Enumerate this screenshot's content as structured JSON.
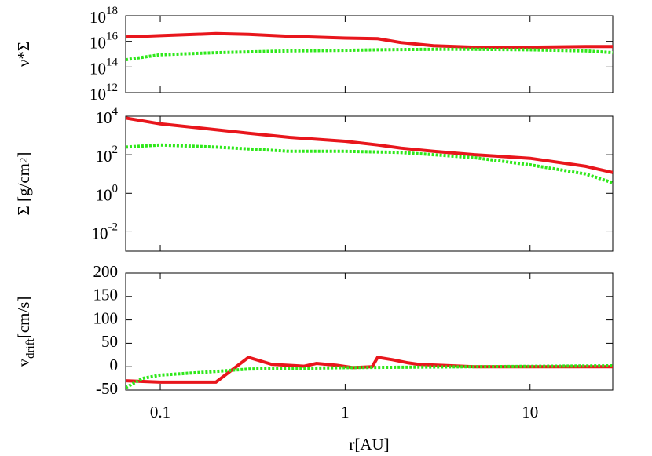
{
  "chart_data": [
    {
      "type": "line",
      "xlog": true,
      "ylog": true,
      "xlim": [
        0.065,
        28
      ],
      "xticks": [
        0.1,
        1,
        10
      ],
      "xtick_labels": false,
      "ylim": [
        1000000000000.0,
        1e+18
      ],
      "yticks": [
        {
          "value": 1000000000000.0,
          "label": "10",
          "sup": "12"
        },
        {
          "value": 100000000000000.0,
          "label": "10",
          "sup": "14"
        },
        {
          "value": 1e+16,
          "label": "10",
          "sup": "16"
        },
        {
          "value": 1e+18,
          "label": "10",
          "sup": "18"
        }
      ],
      "ylabel": [
        {
          "text": "ν*Σ"
        }
      ],
      "series": [
        {
          "color": "#e8161c",
          "style": "solid",
          "x": [
            0.065,
            0.1,
            0.2,
            0.3,
            0.5,
            1,
            1.5,
            2,
            3,
            5,
            10,
            20,
            28
          ],
          "values": [
            2.2e+16,
            2.8e+16,
            4e+16,
            3.5e+16,
            2.5e+16,
            1.8e+16,
            1.6e+16,
            8000000000000000.0,
            4500000000000000.0,
            3500000000000000.0,
            3500000000000000.0,
            4000000000000000.0,
            4000000000000000.0
          ]
        },
        {
          "color": "#2ee81a",
          "style": "dotted",
          "x": [
            0.065,
            0.1,
            0.2,
            0.3,
            0.5,
            1,
            1.5,
            2,
            3,
            5,
            10,
            20,
            28
          ],
          "values": [
            370000000000000.0,
            900000000000000.0,
            1300000000000000.0,
            1500000000000000.0,
            1800000000000000.0,
            2000000000000000.0,
            2200000000000000.0,
            2300000000000000.0,
            2400000000000000.0,
            2400000000000000.0,
            2200000000000000.0,
            1800000000000000.0,
            1300000000000000.0
          ]
        }
      ]
    },
    {
      "type": "line",
      "xlog": true,
      "ylog": true,
      "xlim": [
        0.065,
        28
      ],
      "xticks": [
        0.1,
        1,
        10
      ],
      "xtick_labels": false,
      "ylim": [
        0.001,
        10000
      ],
      "yticks": [
        {
          "value": 0.01,
          "label": "10",
          "sup": "-2"
        },
        {
          "value": 1,
          "label": "10",
          "sup": "0"
        },
        {
          "value": 100,
          "label": "10",
          "sup": "2"
        },
        {
          "value": 10000,
          "label": "10",
          "sup": "4"
        }
      ],
      "ylabel": [
        {
          "text": "Σ [g/cm"
        },
        {
          "text": "2",
          "shift": "sup"
        },
        {
          "text": "]"
        }
      ],
      "series": [
        {
          "color": "#e8161c",
          "style": "solid",
          "x": [
            0.065,
            0.1,
            0.2,
            0.3,
            0.5,
            1,
            1.5,
            2,
            3,
            5,
            10,
            20,
            28
          ],
          "values": [
            8000,
            4000,
            2000,
            1300,
            800,
            500,
            320,
            220,
            150,
            100,
            65,
            25,
            12
          ]
        },
        {
          "color": "#2ee81a",
          "style": "dotted",
          "x": [
            0.065,
            0.1,
            0.2,
            0.3,
            0.5,
            1,
            1.5,
            2,
            3,
            5,
            10,
            20,
            28
          ],
          "values": [
            250,
            320,
            250,
            200,
            150,
            150,
            140,
            130,
            100,
            70,
            30,
            10,
            3.5
          ]
        }
      ]
    },
    {
      "type": "line",
      "xlog": true,
      "ylog": false,
      "xlim": [
        0.065,
        28
      ],
      "xticks": [
        {
          "value": 0.1,
          "label": "0.1"
        },
        1,
        10
      ],
      "xtick_labels": true,
      "xlabel": "r[AU]",
      "ylim": [
        -50,
        200
      ],
      "yticks": [
        -50,
        0,
        50,
        100,
        150,
        200
      ],
      "ylabel": [
        {
          "text": "v"
        },
        {
          "text": "drift",
          "shift": "sub"
        },
        {
          "text": "[cm/s]"
        }
      ],
      "series": [
        {
          "color": "#e8161c",
          "style": "solid",
          "x": [
            0.065,
            0.1,
            0.2,
            0.3,
            0.4,
            0.6,
            0.7,
            0.9,
            1.1,
            1.4,
            1.5,
            1.8,
            2.2,
            2.5,
            5,
            28
          ],
          "values": [
            -30,
            -33,
            -33,
            20,
            5,
            1,
            7,
            3,
            -2,
            0,
            20,
            15,
            8,
            5,
            0,
            0
          ]
        },
        {
          "color": "#2ee81a",
          "style": "dotted",
          "x": [
            0.065,
            0.08,
            0.1,
            0.2,
            0.3,
            1,
            5,
            28
          ],
          "values": [
            -45,
            -25,
            -18,
            -10,
            -5,
            -2,
            0,
            2
          ]
        }
      ]
    }
  ]
}
